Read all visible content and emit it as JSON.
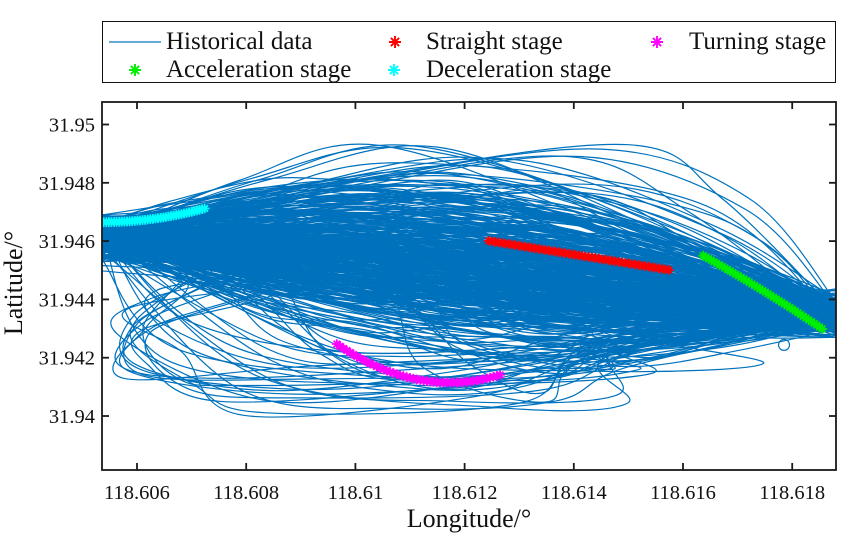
{
  "chart_data": {
    "type": "line",
    "title": "",
    "xlabel": "Longitude/°",
    "ylabel": "Latitude/°",
    "xlim": [
      118.605359,
      118.618802
    ],
    "ylim": [
      31.938148,
      31.950772
    ],
    "xticks": [
      118.606,
      118.608,
      118.61,
      118.612,
      118.614,
      118.616,
      118.618
    ],
    "xtick_labels": [
      "118.606",
      "118.608",
      "118.61",
      "118.612",
      "118.614",
      "118.616",
      "118.618"
    ],
    "yticks": [
      31.94,
      31.942,
      31.944,
      31.946,
      31.948,
      31.95
    ],
    "ytick_labels": [
      "31.94",
      "31.942",
      "31.944",
      "31.946",
      "31.948",
      "31.95"
    ],
    "grid": false,
    "legend_position": "top",
    "axis_color": "#1a1a1a",
    "series": [
      {
        "name": "Historical data",
        "type": "line",
        "color": "#0072BD",
        "line_width": 1.2,
        "description": "bundle of historical vessel trajectories between west and east waypoints",
        "generator": {
          "seed": 1337,
          "n_main": 430,
          "n_high": 22,
          "n_low": 14,
          "n_hooks": 13,
          "n_divers": 12,
          "left_anchor": {
            "lon": 118.605359,
            "lat_mean": 31.94618,
            "lat_sd": 0.00035,
            "lat_min": 31.9446,
            "lat_max": 31.9469
          },
          "right_anchor": {
            "lon": 118.618802,
            "lat_mean": 31.94345,
            "lat_sd": 0.0003,
            "lat_min": 31.9427,
            "lat_max": 31.94455
          },
          "mid": {
            "lat_mean": 31.94505,
            "lat_sd": 0.00135,
            "lat_min": 31.942,
            "lat_max": 31.948
          },
          "high": {
            "lat_min": 31.94755,
            "lat_max": 31.94935
          },
          "low": {
            "lat_min": 31.9402,
            "lat_max": 31.9422
          },
          "hook": {
            "vertex_lon_min": 118.6056,
            "vertex_lon_max": 118.6072,
            "vertex_lat_min": 31.9408,
            "vertex_lat_max": 31.9431,
            "bottom_lat_min": 31.93995,
            "bottom_lat_max": 31.94185
          },
          "loop": {
            "lon": 118.61785,
            "lat": 31.94244,
            "radius_px": 5.5
          }
        }
      },
      {
        "name": "Straight stage",
        "type": "scatter",
        "marker": "asterisk",
        "color": "#FF0000",
        "points": [
          [
            118.61244,
            31.94601
          ],
          [
            118.612501,
            31.945991
          ],
          [
            118.612562,
            31.945973
          ],
          [
            118.612623,
            31.945954
          ],
          [
            118.612684,
            31.945936
          ],
          [
            118.612746,
            31.945917
          ],
          [
            118.612807,
            31.945899
          ],
          [
            118.612868,
            31.94588
          ],
          [
            118.612929,
            31.945862
          ],
          [
            118.61299,
            31.945843
          ],
          [
            118.613051,
            31.945825
          ],
          [
            118.613112,
            31.945806
          ],
          [
            118.613173,
            31.945788
          ],
          [
            118.613234,
            31.945769
          ],
          [
            118.613296,
            31.945751
          ],
          [
            118.613357,
            31.945732
          ],
          [
            118.613418,
            31.945714
          ],
          [
            118.613479,
            31.945695
          ],
          [
            118.61354,
            31.945677
          ],
          [
            118.613601,
            31.945658
          ],
          [
            118.613662,
            31.94564
          ],
          [
            118.613723,
            31.945621
          ],
          [
            118.613784,
            31.945603
          ],
          [
            118.613846,
            31.945584
          ],
          [
            118.613907,
            31.945566
          ],
          [
            118.613968,
            31.945547
          ],
          [
            118.614029,
            31.945529
          ],
          [
            118.61409,
            31.94551
          ],
          [
            118.614151,
            31.945491
          ],
          [
            118.614212,
            31.945473
          ],
          [
            118.614273,
            31.945454
          ],
          [
            118.614334,
            31.945436
          ],
          [
            118.614396,
            31.945417
          ],
          [
            118.614457,
            31.945399
          ],
          [
            118.614518,
            31.94538
          ],
          [
            118.614579,
            31.945362
          ],
          [
            118.61464,
            31.945343
          ],
          [
            118.614701,
            31.945325
          ],
          [
            118.614762,
            31.945306
          ],
          [
            118.614823,
            31.945288
          ],
          [
            118.614884,
            31.945269
          ],
          [
            118.614946,
            31.945251
          ],
          [
            118.615007,
            31.945232
          ],
          [
            118.615068,
            31.945214
          ],
          [
            118.615129,
            31.945195
          ],
          [
            118.61519,
            31.945177
          ],
          [
            118.615251,
            31.945158
          ],
          [
            118.615312,
            31.94514
          ],
          [
            118.615373,
            31.945121
          ],
          [
            118.615434,
            31.945103
          ],
          [
            118.615496,
            31.945084
          ],
          [
            118.615557,
            31.945066
          ],
          [
            118.615618,
            31.945047
          ],
          [
            118.615679,
            31.945029
          ],
          [
            118.61574,
            31.94501
          ]
        ]
      },
      {
        "name": "Turning stage",
        "type": "scatter",
        "marker": "asterisk",
        "color": "#FF00FF",
        "points": [
          [
            118.60966,
            31.942471
          ],
          [
            118.609721,
            31.942394
          ],
          [
            118.609782,
            31.942319
          ],
          [
            118.609843,
            31.942246
          ],
          [
            118.609904,
            31.942176
          ],
          [
            118.609965,
            31.942108
          ],
          [
            118.610026,
            31.942042
          ],
          [
            118.610087,
            31.941979
          ],
          [
            118.610148,
            31.941918
          ],
          [
            118.610209,
            31.941859
          ],
          [
            118.61027,
            31.941803
          ],
          [
            118.610331,
            31.941749
          ],
          [
            118.610392,
            31.941697
          ],
          [
            118.610453,
            31.941648
          ],
          [
            118.610514,
            31.9416
          ],
          [
            118.610575,
            31.941556
          ],
          [
            118.610636,
            31.941513
          ],
          [
            118.610697,
            31.941473
          ],
          [
            118.610758,
            31.941435
          ],
          [
            118.610819,
            31.9414
          ],
          [
            118.61088,
            31.941366
          ],
          [
            118.610941,
            31.941335
          ],
          [
            118.611002,
            31.941307
          ],
          [
            118.611063,
            31.941281
          ],
          [
            118.611124,
            31.941257
          ],
          [
            118.611186,
            31.941235
          ],
          [
            118.611247,
            31.941216
          ],
          [
            118.611308,
            31.941199
          ],
          [
            118.611369,
            31.941184
          ],
          [
            118.61143,
            31.941172
          ],
          [
            118.611491,
            31.941162
          ],
          [
            118.611552,
            31.941154
          ],
          [
            118.611613,
            31.941148
          ],
          [
            118.611674,
            31.941145
          ],
          [
            118.611735,
            31.941145
          ],
          [
            118.611796,
            31.941146
          ],
          [
            118.611857,
            31.94115
          ],
          [
            118.611918,
            31.941156
          ],
          [
            118.611979,
            31.941165
          ],
          [
            118.61204,
            31.941175
          ],
          [
            118.612101,
            31.941188
          ],
          [
            118.612162,
            31.941204
          ],
          [
            118.612223,
            31.941222
          ],
          [
            118.612284,
            31.941242
          ],
          [
            118.612345,
            31.941264
          ],
          [
            118.612406,
            31.941289
          ],
          [
            118.612467,
            31.941316
          ],
          [
            118.612528,
            31.941345
          ],
          [
            118.612589,
            31.941377
          ],
          [
            118.61265,
            31.941411
          ]
        ]
      },
      {
        "name": "Acceleration stage",
        "type": "scatter",
        "marker": "asterisk",
        "color": "#00EE00",
        "points": [
          [
            118.61637,
            31.9455
          ],
          [
            118.61642,
            31.945448
          ],
          [
            118.616469,
            31.945396
          ],
          [
            118.616519,
            31.945344
          ],
          [
            118.616568,
            31.945292
          ],
          [
            118.616618,
            31.945239
          ],
          [
            118.616667,
            31.945186
          ],
          [
            118.616717,
            31.945133
          ],
          [
            118.616766,
            31.945079
          ],
          [
            118.616816,
            31.945026
          ],
          [
            118.616865,
            31.944972
          ],
          [
            118.616915,
            31.944917
          ],
          [
            118.616965,
            31.944863
          ],
          [
            118.617014,
            31.944808
          ],
          [
            118.617064,
            31.944753
          ],
          [
            118.617113,
            31.944698
          ],
          [
            118.617163,
            31.944643
          ],
          [
            118.617212,
            31.944587
          ],
          [
            118.617262,
            31.944531
          ],
          [
            118.617311,
            31.944475
          ],
          [
            118.617361,
            31.944419
          ],
          [
            118.61741,
            31.944362
          ],
          [
            118.61746,
            31.944305
          ],
          [
            118.61751,
            31.944248
          ],
          [
            118.617559,
            31.94419
          ],
          [
            118.617609,
            31.944133
          ],
          [
            118.617658,
            31.944075
          ],
          [
            118.617708,
            31.944017
          ],
          [
            118.617757,
            31.943958
          ],
          [
            118.617807,
            31.9439
          ],
          [
            118.617856,
            31.943841
          ],
          [
            118.617906,
            31.943782
          ],
          [
            118.617955,
            31.943722
          ],
          [
            118.618005,
            31.943663
          ],
          [
            118.618055,
            31.943603
          ],
          [
            118.618104,
            31.943542
          ],
          [
            118.618154,
            31.943482
          ],
          [
            118.618203,
            31.943421
          ],
          [
            118.618253,
            31.943361
          ],
          [
            118.618302,
            31.943299
          ],
          [
            118.618352,
            31.943238
          ],
          [
            118.618401,
            31.943176
          ],
          [
            118.618451,
            31.943115
          ],
          [
            118.6185,
            31.943052
          ],
          [
            118.61855,
            31.94299
          ]
        ]
      },
      {
        "name": "Deceleration stage",
        "type": "scatter",
        "marker": "asterisk",
        "color": "#00FFFF",
        "points": [
          [
            118.60539,
            31.94665
          ],
          [
            118.605437,
            31.94665
          ],
          [
            118.605485,
            31.946651
          ],
          [
            118.605532,
            31.946653
          ],
          [
            118.60558,
            31.946655
          ],
          [
            118.605627,
            31.946658
          ],
          [
            118.605675,
            31.946661
          ],
          [
            118.605722,
            31.946665
          ],
          [
            118.605769,
            31.94667
          ],
          [
            118.605817,
            31.946675
          ],
          [
            118.605864,
            31.946681
          ],
          [
            118.605912,
            31.946687
          ],
          [
            118.605959,
            31.946694
          ],
          [
            118.606007,
            31.946702
          ],
          [
            118.606054,
            31.946711
          ],
          [
            118.606102,
            31.94672
          ],
          [
            118.606149,
            31.946729
          ],
          [
            118.606196,
            31.946739
          ],
          [
            118.606244,
            31.94675
          ],
          [
            118.606291,
            31.946762
          ],
          [
            118.606339,
            31.946774
          ],
          [
            118.606386,
            31.946786
          ],
          [
            118.606434,
            31.9468
          ],
          [
            118.606481,
            31.946813
          ],
          [
            118.606528,
            31.946828
          ],
          [
            118.606576,
            31.946843
          ],
          [
            118.606623,
            31.946859
          ],
          [
            118.606671,
            31.946875
          ],
          [
            118.606718,
            31.946892
          ],
          [
            118.606766,
            31.94691
          ],
          [
            118.606813,
            31.946928
          ],
          [
            118.606861,
            31.946947
          ],
          [
            118.606908,
            31.946966
          ],
          [
            118.606955,
            31.946987
          ],
          [
            118.607003,
            31.947007
          ],
          [
            118.60705,
            31.947029
          ],
          [
            118.607098,
            31.94705
          ],
          [
            118.607145,
            31.947073
          ],
          [
            118.607193,
            31.947096
          ],
          [
            118.60724,
            31.94712
          ]
        ]
      }
    ]
  },
  "legend": {
    "items": [
      {
        "label": "Historical data",
        "marker": "line",
        "color": "#0072BD"
      },
      {
        "label": "Straight stage",
        "marker": "asterisk",
        "color": "#FF0000"
      },
      {
        "label": "Turning stage",
        "marker": "asterisk",
        "color": "#FF00FF"
      },
      {
        "label": "Acceleration stage",
        "marker": "asterisk",
        "color": "#00EE00"
      },
      {
        "label": "Deceleration stage",
        "marker": "asterisk",
        "color": "#00FFFF"
      }
    ]
  }
}
